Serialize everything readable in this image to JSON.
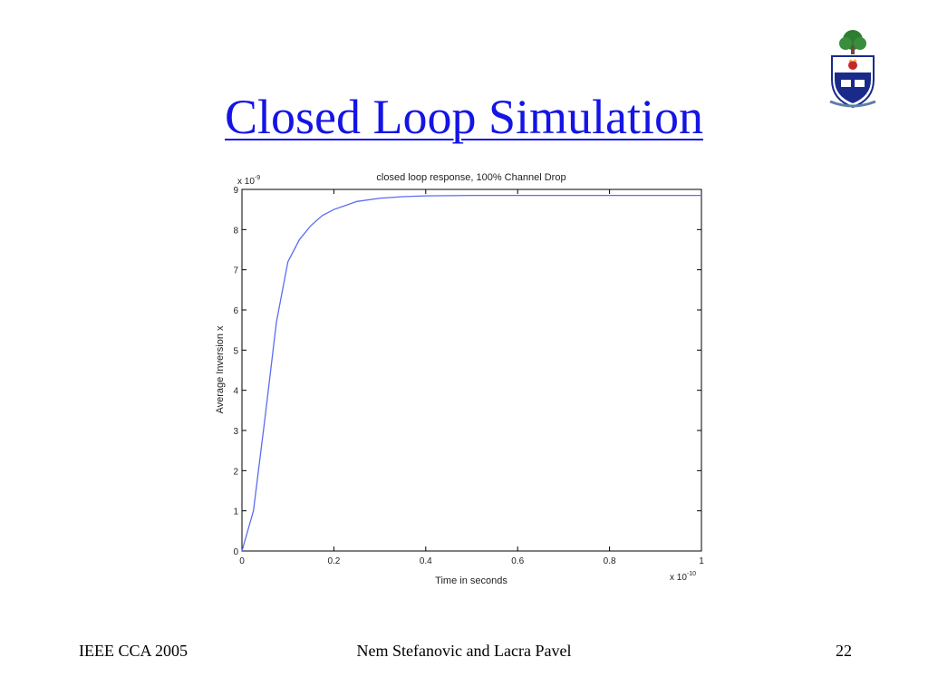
{
  "slide": {
    "title": "Closed Loop Simulation",
    "footer_left": "IEEE CCA 2005",
    "footer_center": "Nem Stefanovic and Lacra Pavel",
    "footer_right": "22"
  },
  "colors": {
    "title": "#1414e6",
    "series": "#5b6cf2",
    "crest_shield": "#1a2a8a",
    "crest_tree": "#2e7d32"
  },
  "icons": [
    "university-crest-icon"
  ],
  "chart_data": {
    "type": "line",
    "title": "closed loop response, 100% Channel Drop",
    "xlabel": "Time in seconds",
    "ylabel": "Average Inversion x",
    "x_exponent_label": "x 10",
    "x_exponent": "-10",
    "y_exponent_label": "x 10",
    "y_exponent": "-9",
    "xlim": [
      0,
      1
    ],
    "ylim": [
      0,
      9
    ],
    "xticks": [
      0,
      0.2,
      0.4,
      0.6,
      0.8,
      1
    ],
    "xtick_labels": [
      "0",
      "0.2",
      "0.4",
      "0.6",
      "0.8",
      "1"
    ],
    "yticks": [
      0,
      1,
      2,
      3,
      4,
      5,
      6,
      7,
      8,
      9
    ],
    "ytick_labels": [
      "0",
      "1",
      "2",
      "3",
      "4",
      "5",
      "6",
      "7",
      "8",
      "9"
    ],
    "grid": false,
    "series": [
      {
        "x": [
          0,
          0.025,
          0.05,
          0.075,
          0.1,
          0.125,
          0.15,
          0.175,
          0.2,
          0.25,
          0.3,
          0.35,
          0.4,
          0.5,
          0.6,
          0.7,
          0.8,
          0.9,
          1.0
        ],
        "values": [
          0,
          1.0,
          3.3,
          5.7,
          7.2,
          7.75,
          8.1,
          8.35,
          8.5,
          8.7,
          8.78,
          8.82,
          8.84,
          8.85,
          8.85,
          8.85,
          8.85,
          8.85,
          8.85
        ]
      }
    ]
  }
}
